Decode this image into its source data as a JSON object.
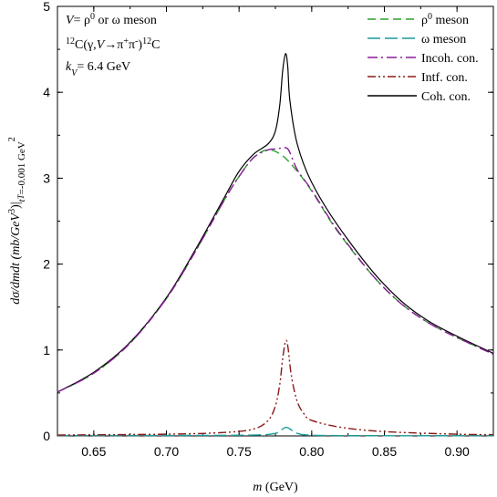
{
  "chart_data": {
    "type": "line",
    "title": "",
    "xlabel_prefix": "m",
    "xlabel_suffix": " (GeV)",
    "ylabel_main": "dσ/dmdt (mb/GeV",
    "ylabel_sup": "3",
    "ylabel_mid": ")|",
    "ylabel_t": "t",
    "ylabel_T": "T",
    "ylabel_tail": "=-0.001 GeV",
    "ylabel_tail_sup": "2",
    "xlim": [
      0.625,
      0.925
    ],
    "ylim": [
      0,
      5
    ],
    "x_ticks": [
      0.65,
      0.7,
      0.75,
      0.8,
      0.85,
      0.9
    ],
    "x_tick_labels": [
      "0.65",
      "0.70",
      "0.75",
      "0.80",
      "0.85",
      "0.90"
    ],
    "y_ticks": [
      0,
      1,
      2,
      3,
      4,
      5
    ],
    "y_tick_labels": [
      "0",
      "1",
      "2",
      "3",
      "4",
      "5"
    ],
    "legend_position": "top-right",
    "annotations": {
      "line1_a": "V",
      "line1_b": "= ρ",
      "line1_sup": "0",
      "line1_c": " or ω meson",
      "line2_pre_sup": "12",
      "line2_a": "C(γ,",
      "line2_b": "V",
      "line2_c": "→π",
      "line2_sup1": "+",
      "line2_d": "π",
      "line2_sup2": "-",
      "line2_e": ")",
      "line2_sup3": "12",
      "line2_f": "C",
      "line3_a": "k",
      "line3_sub": "V",
      "line3_b": "= 6.4 GeV"
    },
    "series": [
      {
        "name": "ρ⁰ meson",
        "legend_main": "ρ",
        "legend_sup": "0",
        "legend_tail": " meson",
        "color": "#2ca02c",
        "dash": "9,5",
        "x": [
          0.625,
          0.65,
          0.675,
          0.7,
          0.72,
          0.74,
          0.75,
          0.76,
          0.77,
          0.78,
          0.79,
          0.8,
          0.82,
          0.85,
          0.88,
          0.925
        ],
        "y": [
          0.51,
          0.73,
          1.08,
          1.6,
          2.15,
          2.75,
          3.02,
          3.24,
          3.33,
          3.26,
          3.08,
          2.85,
          2.33,
          1.72,
          1.32,
          0.95
        ]
      },
      {
        "name": "ω meson",
        "legend_main": "ω",
        "legend_sup": "",
        "legend_tail": " meson",
        "color": "#1a9a9a",
        "dash": "14,5",
        "x": [
          0.625,
          0.7,
          0.76,
          0.775,
          0.779,
          0.7825,
          0.786,
          0.79,
          0.81,
          0.925
        ],
        "y": [
          0.005,
          0.005,
          0.01,
          0.03,
          0.07,
          0.1,
          0.07,
          0.03,
          0.005,
          0.003
        ]
      },
      {
        "name": "Incoh. con.",
        "legend_main": "Incoh. con.",
        "legend_sup": "",
        "legend_tail": "",
        "color": "#8b1a9b",
        "dash": "11,4,2,4",
        "x": [
          0.625,
          0.65,
          0.675,
          0.7,
          0.72,
          0.74,
          0.75,
          0.76,
          0.77,
          0.775,
          0.78,
          0.784,
          0.79,
          0.8,
          0.82,
          0.85,
          0.88,
          0.925
        ],
        "y": [
          0.51,
          0.73,
          1.08,
          1.6,
          2.15,
          2.75,
          3.02,
          3.24,
          3.33,
          3.34,
          3.35,
          3.33,
          3.1,
          2.86,
          2.34,
          1.72,
          1.32,
          0.95
        ]
      },
      {
        "name": "Intf. con.",
        "legend_main": "Intf. con.",
        "legend_sup": "",
        "legend_tail": "",
        "color": "#8b1a1a",
        "dash": "9,3,2,3,2,3",
        "x": [
          0.625,
          0.7,
          0.74,
          0.76,
          0.77,
          0.775,
          0.778,
          0.78,
          0.782,
          0.7835,
          0.786,
          0.79,
          0.795,
          0.8,
          0.82,
          0.85,
          0.9,
          0.925
        ],
        "y": [
          0.01,
          0.02,
          0.04,
          0.08,
          0.18,
          0.35,
          0.6,
          0.9,
          1.1,
          1.05,
          0.7,
          0.4,
          0.25,
          0.18,
          0.1,
          0.05,
          0.02,
          0.015
        ]
      },
      {
        "name": "Coh. con.",
        "legend_main": "Coh. con.",
        "legend_sup": "",
        "legend_tail": "",
        "color": "#000000",
        "dash": "",
        "x": [
          0.625,
          0.65,
          0.675,
          0.7,
          0.72,
          0.74,
          0.75,
          0.76,
          0.77,
          0.775,
          0.778,
          0.78,
          0.782,
          0.7835,
          0.785,
          0.79,
          0.8,
          0.82,
          0.85,
          0.88,
          0.925
        ],
        "y": [
          0.51,
          0.74,
          1.09,
          1.61,
          2.17,
          2.78,
          3.08,
          3.28,
          3.4,
          3.55,
          3.85,
          4.25,
          4.45,
          4.3,
          3.9,
          3.4,
          2.95,
          2.4,
          1.76,
          1.34,
          0.96
        ]
      }
    ]
  }
}
